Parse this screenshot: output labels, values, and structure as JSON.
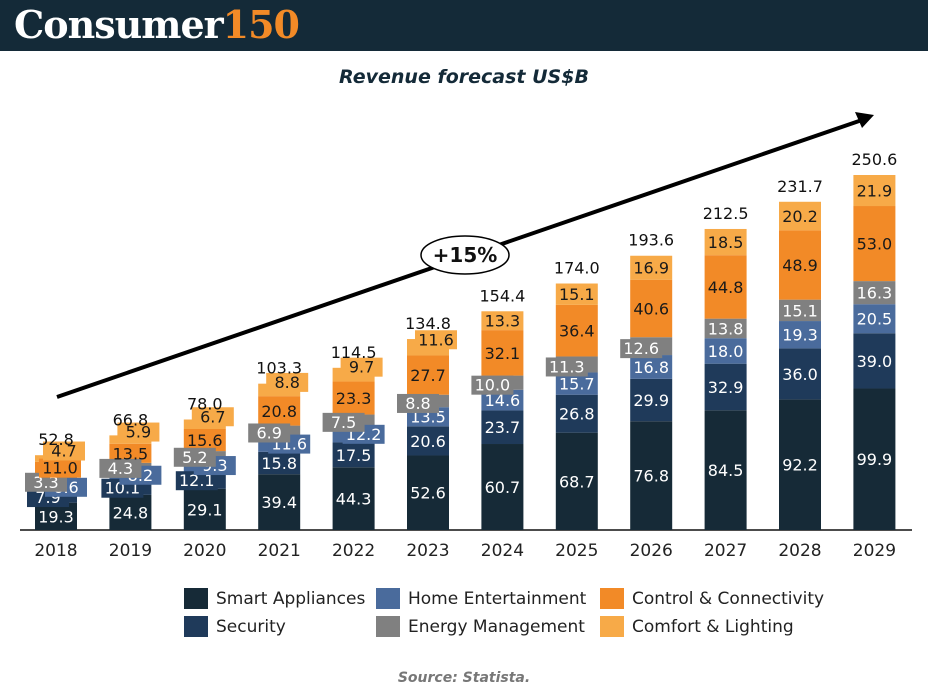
{
  "header": {
    "logo_text": "Consumer",
    "logo_number": "150",
    "logo_accent": "#f28a27",
    "background": "#142a38"
  },
  "chart_data": {
    "type": "bar",
    "stacked": true,
    "title": "Revenue forecast US$B",
    "xlabel": "",
    "ylabel": "",
    "ylim": [
      0,
      250.6
    ],
    "grid": false,
    "legend_position": "bottom",
    "categories": [
      "2018",
      "2019",
      "2020",
      "2021",
      "2022",
      "2023",
      "2024",
      "2025",
      "2026",
      "2027",
      "2028",
      "2029"
    ],
    "series": [
      {
        "name": "Smart Appliances",
        "color": "#162a37",
        "label_color": "#ffffff",
        "values": [
          19.3,
          24.8,
          29.1,
          39.4,
          44.3,
          52.6,
          60.7,
          68.7,
          76.8,
          84.5,
          92.2,
          99.9
        ]
      },
      {
        "name": "Security",
        "color": "#1f3a5a",
        "label_color": "#ffffff",
        "values": [
          7.9,
          10.1,
          12.1,
          15.8,
          17.5,
          20.6,
          23.7,
          26.8,
          29.9,
          32.9,
          36.0,
          39.0
        ]
      },
      {
        "name": "Home Entertainment",
        "color": "#4a6b9c",
        "label_color": "#ffffff",
        "values": [
          6.6,
          8.2,
          9.3,
          11.6,
          12.2,
          13.5,
          14.6,
          15.7,
          16.8,
          18.0,
          19.3,
          20.5
        ]
      },
      {
        "name": "Energy Management",
        "color": "#808080",
        "label_color": "#ffffff",
        "values": [
          3.3,
          4.3,
          5.2,
          6.9,
          7.5,
          8.8,
          10.0,
          11.3,
          12.6,
          13.8,
          15.1,
          16.3
        ]
      },
      {
        "name": "Control & Connectivity",
        "color": "#f28a27",
        "label_color": "#1a1a1a",
        "values": [
          11.0,
          13.5,
          15.6,
          20.8,
          23.3,
          27.7,
          32.1,
          36.4,
          40.6,
          44.8,
          48.9,
          53.0
        ]
      },
      {
        "name": "Comfort & Lighting",
        "color": "#f7aa48",
        "label_color": "#1a1a1a",
        "values": [
          4.7,
          5.9,
          6.7,
          8.8,
          9.7,
          11.6,
          13.3,
          15.1,
          16.9,
          18.5,
          20.2,
          21.9
        ]
      }
    ],
    "totals": [
      52.8,
      66.8,
      78.0,
      103.3,
      114.5,
      134.8,
      154.4,
      174.0,
      193.6,
      212.5,
      231.7,
      250.6
    ],
    "annotations": [
      {
        "text": "+15%",
        "type": "trend-arrow",
        "meaning": "growth rate"
      }
    ]
  },
  "legend_order": [
    0,
    2,
    4,
    1,
    3,
    5
  ],
  "source": "Source: Statista."
}
